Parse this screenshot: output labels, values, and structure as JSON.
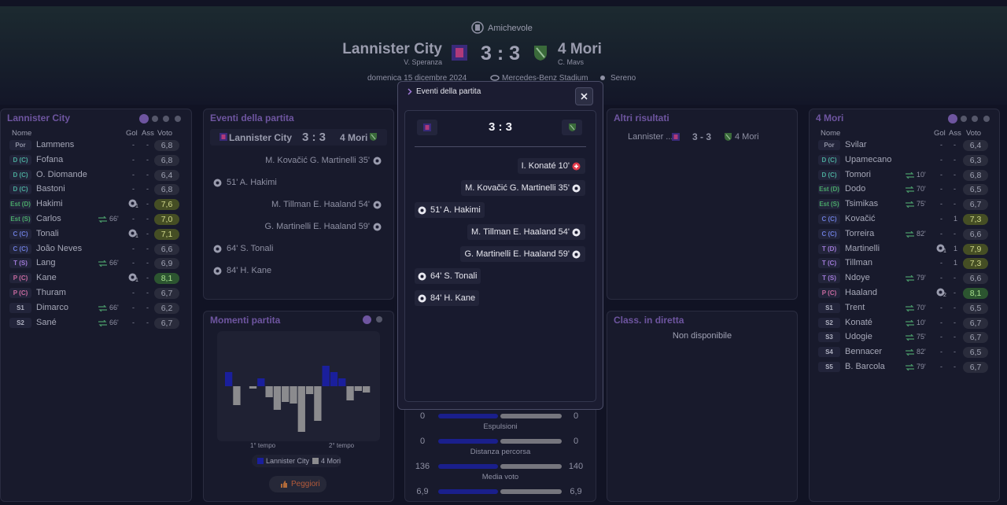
{
  "header": {
    "competition": "Amichevole",
    "home": "Lannister City",
    "home_coach": "V. Speranza",
    "score": "3 : 3",
    "away": "4 Mori",
    "away_coach": "C. Mavs",
    "date": "domenica 15 dicembre 2024",
    "stadium": "Mercedes-Benz Stadium",
    "weather": "Sereno"
  },
  "home_panel": {
    "title": "Lannister City",
    "columns": [
      "Nome",
      "Gol",
      "Ass",
      "Voto"
    ],
    "players": [
      {
        "pos": "Por",
        "name": "Lammens",
        "sub": null,
        "gol": "-",
        "ass": "-",
        "voto": "6,8"
      },
      {
        "pos": "D (C)",
        "name": "Fofana",
        "sub": null,
        "gol": "-",
        "ass": "-",
        "voto": "6,8"
      },
      {
        "pos": "D (C)",
        "name": "O. Diomande",
        "sub": null,
        "gol": "-",
        "ass": "-",
        "voto": "6,4"
      },
      {
        "pos": "D (C)",
        "name": "Bastoni",
        "sub": null,
        "gol": "-",
        "ass": "-",
        "voto": "6,8"
      },
      {
        "pos": "Est (D)",
        "name": "Hakimi",
        "sub": null,
        "gol": 1,
        "ass": "-",
        "voto": "7,6"
      },
      {
        "pos": "Est (S)",
        "name": "Carlos",
        "sub": "66'",
        "gol": "-",
        "ass": "-",
        "voto": "7,0"
      },
      {
        "pos": "C (C)",
        "name": "Tonali",
        "sub": null,
        "gol": 1,
        "ass": "-",
        "voto": "7,1"
      },
      {
        "pos": "C (C)",
        "name": "João Neves",
        "sub": null,
        "gol": "-",
        "ass": "-",
        "voto": "6,6"
      },
      {
        "pos": "T (S)",
        "name": "Lang",
        "sub": "66'",
        "gol": "-",
        "ass": "-",
        "voto": "6,9"
      },
      {
        "pos": "P (C)",
        "name": "Kane",
        "sub": null,
        "gol": 1,
        "ass": "-",
        "voto": "8,1"
      },
      {
        "pos": "P (C)",
        "name": "Thuram",
        "sub": null,
        "gol": "-",
        "ass": "-",
        "voto": "6,7"
      },
      {
        "pos": "S1",
        "name": "Dimarco",
        "sub": "66'",
        "gol": "-",
        "ass": "-",
        "voto": "6,2"
      },
      {
        "pos": "S2",
        "name": "Sané",
        "sub": "66'",
        "gol": "-",
        "ass": "-",
        "voto": "6,7"
      }
    ]
  },
  "away_panel": {
    "title": "4 Mori",
    "columns": [
      "Nome",
      "Gol",
      "Ass",
      "Voto"
    ],
    "players": [
      {
        "pos": "Por",
        "name": "Svilar",
        "sub": null,
        "gol": "-",
        "ass": "-",
        "voto": "6,4"
      },
      {
        "pos": "D (C)",
        "name": "Upamecano",
        "sub": null,
        "gol": "-",
        "ass": "-",
        "voto": "6,3"
      },
      {
        "pos": "D (C)",
        "name": "Tomori",
        "sub": "10'",
        "gol": "-",
        "ass": "-",
        "voto": "6,8"
      },
      {
        "pos": "Est (D)",
        "name": "Dodo",
        "sub": "70'",
        "gol": "-",
        "ass": "-",
        "voto": "6,5"
      },
      {
        "pos": "Est (S)",
        "name": "Tsimikas",
        "sub": "75'",
        "gol": "-",
        "ass": "-",
        "voto": "6,7"
      },
      {
        "pos": "C (C)",
        "name": "Kovačić",
        "sub": null,
        "gol": "-",
        "ass": "1",
        "voto": "7,3"
      },
      {
        "pos": "C (C)",
        "name": "Torreira",
        "sub": "82'",
        "gol": "-",
        "ass": "-",
        "voto": "6,6"
      },
      {
        "pos": "T (D)",
        "name": "Martinelli",
        "sub": null,
        "gol": 1,
        "ass": "1",
        "voto": "7,9"
      },
      {
        "pos": "T (C)",
        "name": "Tillman",
        "sub": null,
        "gol": "-",
        "ass": "1",
        "voto": "7,3"
      },
      {
        "pos": "T (S)",
        "name": "Ndoye",
        "sub": "79'",
        "gol": "-",
        "ass": "-",
        "voto": "6,6"
      },
      {
        "pos": "P (C)",
        "name": "Haaland",
        "sub": null,
        "gol": 2,
        "ass": "-",
        "voto": "8,1"
      },
      {
        "pos": "S1",
        "name": "Trent",
        "sub": "70'",
        "gol": "-",
        "ass": "-",
        "voto": "6,5"
      },
      {
        "pos": "S2",
        "name": "Konaté",
        "sub": "10'",
        "gol": "-",
        "ass": "-",
        "voto": "6,7"
      },
      {
        "pos": "S3",
        "name": "Udogie",
        "sub": "75'",
        "gol": "-",
        "ass": "-",
        "voto": "6,7"
      },
      {
        "pos": "S4",
        "name": "Bennacer",
        "sub": "82'",
        "gol": "-",
        "ass": "-",
        "voto": "6,5"
      },
      {
        "pos": "S5",
        "name": "B. Barcola",
        "sub": "79'",
        "gol": "-",
        "ass": "-",
        "voto": "6,7"
      }
    ]
  },
  "events_panel": {
    "title": "Eventi della partita",
    "home": "Lannister City",
    "score": "3 : 3",
    "away": "4 Mori",
    "events": [
      {
        "text": "M. Kovačić G. Martinelli 35'",
        "side": "right"
      },
      {
        "text": "51' A. Hakimi",
        "side": "left"
      },
      {
        "text": "M. Tillman E. Haaland 54'",
        "side": "right"
      },
      {
        "text": "G. Martinelli E. Haaland 59'",
        "side": "right"
      },
      {
        "text": "64' S. Tonali",
        "side": "left"
      },
      {
        "text": "84' H. Kane",
        "side": "left"
      }
    ]
  },
  "modal": {
    "title": "Eventi della partita",
    "score": "3 : 3",
    "events": [
      {
        "text": "I. Konaté 10'",
        "side": "right",
        "icon": "red"
      },
      {
        "text": "M. Kovačić G. Martinelli 35'",
        "side": "right",
        "icon": "goal"
      },
      {
        "text": "51' A. Hakimi",
        "side": "left",
        "icon": "goal"
      },
      {
        "text": "M. Tillman E. Haaland 54'",
        "side": "right",
        "icon": "goal"
      },
      {
        "text": "G. Martinelli E. Haaland 59'",
        "side": "right",
        "icon": "goal"
      },
      {
        "text": "64' S. Tonali",
        "side": "left",
        "icon": "goal"
      },
      {
        "text": "84' H. Kane",
        "side": "left",
        "icon": "goal"
      }
    ]
  },
  "other_results": {
    "title": "Altri risultati",
    "home": "Lannister ...",
    "score": "3 - 3",
    "away": "4 Mori"
  },
  "live_table": {
    "title": "Class. in diretta",
    "message": "Non disponibile"
  },
  "stats": [
    {
      "label": null,
      "home": "0",
      "away": "0"
    },
    {
      "label": "Espulsioni",
      "home": "0",
      "away": "0"
    },
    {
      "label": "Distanza percorsa",
      "home": "136",
      "away": "140"
    },
    {
      "label": "Media voto",
      "home": "6,9",
      "away": "6,9"
    }
  ],
  "momentum_panel": {
    "title": "Momenti partita",
    "halves": [
      "1° tempo",
      "2° tempo"
    ],
    "button": "Peggiori"
  },
  "chart_data": {
    "type": "bar",
    "series": [
      {
        "name": "Lannister City",
        "color": "#1a1f9c"
      },
      {
        "name": "4 Mori",
        "color": "#8b8b8e"
      }
    ],
    "values": [
      18,
      -24,
      0,
      -3,
      10,
      -14,
      -30,
      -20,
      -22,
      -58,
      -10,
      -44,
      26,
      18,
      10,
      -18,
      -6,
      -8
    ],
    "ylim": [
      -70,
      70
    ]
  }
}
